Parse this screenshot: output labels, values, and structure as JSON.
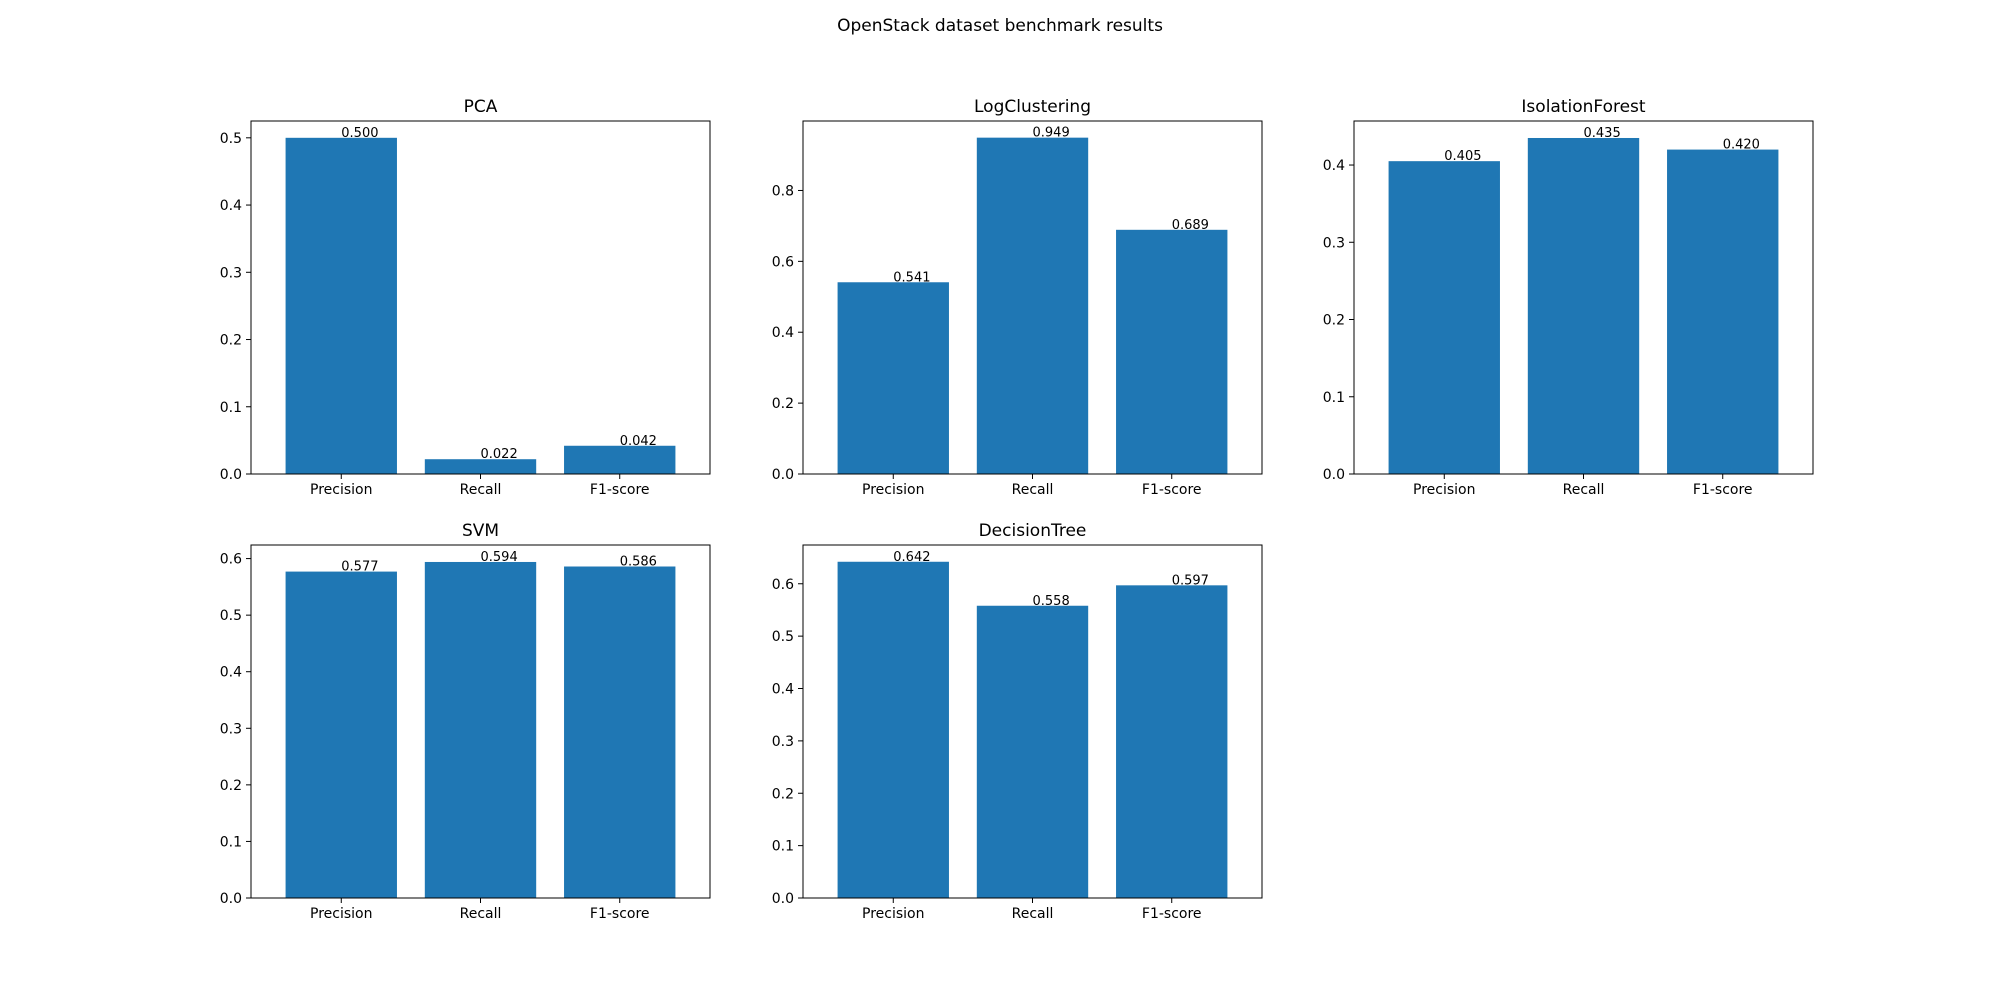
{
  "figure": {
    "suptitle": "OpenStack dataset benchmark results"
  },
  "colors": {
    "bar": "#1f77b4",
    "axis": "#000000",
    "text": "#000000",
    "background": "#ffffff"
  },
  "chart_data": [
    {
      "type": "bar",
      "title": "PCA",
      "categories": [
        "Precision",
        "Recall",
        "F1-score"
      ],
      "values": [
        0.5,
        0.022,
        0.042
      ],
      "value_labels": [
        "0.500",
        "0.022",
        "0.042"
      ],
      "yticks": [
        0.0,
        0.1,
        0.2,
        0.3,
        0.4,
        0.5
      ],
      "ytick_labels": [
        "0.0",
        "0.1",
        "0.2",
        "0.3",
        "0.4",
        "0.5"
      ],
      "ylim": [
        0,
        0.525
      ],
      "xlabel": "",
      "ylabel": "",
      "grid": false
    },
    {
      "type": "bar",
      "title": "LogClustering",
      "categories": [
        "Precision",
        "Recall",
        "F1-score"
      ],
      "values": [
        0.541,
        0.949,
        0.689
      ],
      "value_labels": [
        "0.541",
        "0.949",
        "0.689"
      ],
      "yticks": [
        0.0,
        0.2,
        0.4,
        0.6,
        0.8
      ],
      "ytick_labels": [
        "0.0",
        "0.2",
        "0.4",
        "0.6",
        "0.8"
      ],
      "ylim": [
        0,
        0.996
      ],
      "xlabel": "",
      "ylabel": "",
      "grid": false
    },
    {
      "type": "bar",
      "title": "IsolationForest",
      "categories": [
        "Precision",
        "Recall",
        "F1-score"
      ],
      "values": [
        0.405,
        0.435,
        0.42
      ],
      "value_labels": [
        "0.405",
        "0.435",
        "0.420"
      ],
      "yticks": [
        0.0,
        0.1,
        0.2,
        0.3,
        0.4
      ],
      "ytick_labels": [
        "0.0",
        "0.1",
        "0.2",
        "0.3",
        "0.4"
      ],
      "ylim": [
        0,
        0.457
      ],
      "xlabel": "",
      "ylabel": "",
      "grid": false
    },
    {
      "type": "bar",
      "title": "SVM",
      "categories": [
        "Precision",
        "Recall",
        "F1-score"
      ],
      "values": [
        0.577,
        0.594,
        0.586
      ],
      "value_labels": [
        "0.577",
        "0.594",
        "0.586"
      ],
      "yticks": [
        0.0,
        0.1,
        0.2,
        0.3,
        0.4,
        0.5,
        0.6
      ],
      "ytick_labels": [
        "0.0",
        "0.1",
        "0.2",
        "0.3",
        "0.4",
        "0.5",
        "0.6"
      ],
      "ylim": [
        0,
        0.624
      ],
      "xlabel": "",
      "ylabel": "",
      "grid": false
    },
    {
      "type": "bar",
      "title": "DecisionTree",
      "categories": [
        "Precision",
        "Recall",
        "F1-score"
      ],
      "values": [
        0.642,
        0.558,
        0.597
      ],
      "value_labels": [
        "0.642",
        "0.558",
        "0.597"
      ],
      "yticks": [
        0.0,
        0.1,
        0.2,
        0.3,
        0.4,
        0.5,
        0.6
      ],
      "ytick_labels": [
        "0.0",
        "0.1",
        "0.2",
        "0.3",
        "0.4",
        "0.5",
        "0.6"
      ],
      "ylim": [
        0,
        0.674
      ],
      "xlabel": "",
      "ylabel": "",
      "grid": false
    }
  ]
}
